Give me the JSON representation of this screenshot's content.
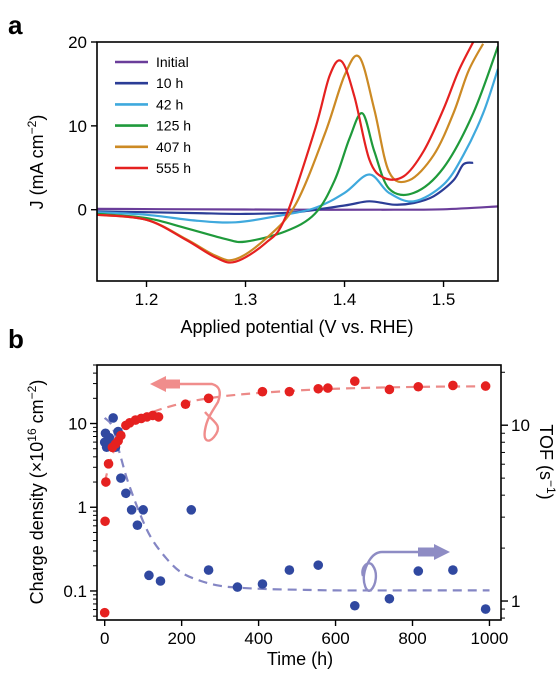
{
  "panels": [
    {
      "letter": "a"
    },
    {
      "letter": "b"
    }
  ],
  "chart_data": [
    {
      "type": "line",
      "panel": "a",
      "xlabel": "Applied potential (V vs. RHE)",
      "ylabel_main": "J (mA cm",
      "ylabel_sup": "−2",
      "ylabel_end": ")",
      "xlim": [
        1.15,
        1.555
      ],
      "ylim": [
        -8.5,
        20
      ],
      "xticks": [
        1.2,
        1.3,
        1.4,
        1.5
      ],
      "xtick_labels": [
        "1.2",
        "1.3",
        "1.4",
        "1.5"
      ],
      "yticks": [
        0,
        10,
        20
      ],
      "ytick_labels": [
        "0",
        "10",
        "20"
      ],
      "legend_position": "top-left",
      "series": [
        {
          "name": "Initial",
          "color": "#6a3d9a",
          "x": [
            1.15,
            1.25,
            1.35,
            1.45,
            1.5,
            1.555
          ],
          "y": [
            0.1,
            0.05,
            0.0,
            0.0,
            0.05,
            0.4
          ]
        },
        {
          "name": "10 h",
          "color": "#2b3d96",
          "x": [
            1.15,
            1.2,
            1.25,
            1.3,
            1.35,
            1.4,
            1.425,
            1.45,
            1.47,
            1.49,
            1.51,
            1.52,
            1.53
          ],
          "y": [
            -0.2,
            -0.3,
            -0.4,
            -0.5,
            -0.3,
            0.5,
            1.0,
            0.6,
            0.8,
            1.6,
            3.5,
            5.4,
            5.6
          ]
        },
        {
          "name": "42 h",
          "color": "#3fa9dd",
          "x": [
            1.15,
            1.2,
            1.25,
            1.29,
            1.33,
            1.37,
            1.4,
            1.425,
            1.445,
            1.47,
            1.5,
            1.52,
            1.54,
            1.555
          ],
          "y": [
            -0.3,
            -0.6,
            -1.3,
            -1.5,
            -0.8,
            0.2,
            2.0,
            4.2,
            2.0,
            1.0,
            3.0,
            6.5,
            11.5,
            16.8
          ]
        },
        {
          "name": "125 h",
          "color": "#1f9a3b",
          "x": [
            1.15,
            1.2,
            1.24,
            1.28,
            1.3,
            1.34,
            1.37,
            1.39,
            1.405,
            1.418,
            1.43,
            1.445,
            1.47,
            1.5,
            1.53,
            1.555
          ],
          "y": [
            -0.5,
            -1.0,
            -2.2,
            -3.5,
            -3.8,
            -2.6,
            -0.5,
            3.5,
            8.5,
            11.5,
            7.0,
            2.5,
            2.0,
            5.0,
            11.5,
            19.5
          ]
        },
        {
          "name": "407 h",
          "color": "#cc8a24",
          "x": [
            1.15,
            1.2,
            1.24,
            1.27,
            1.29,
            1.32,
            1.35,
            1.38,
            1.4,
            1.415,
            1.43,
            1.445,
            1.465,
            1.49,
            1.51,
            1.525,
            1.54
          ],
          "y": [
            -0.6,
            -1.2,
            -3.5,
            -5.5,
            -5.9,
            -3.5,
            0.5,
            9.0,
            16.0,
            18.2,
            12.0,
            4.5,
            3.5,
            6.5,
            11.5,
            16.5,
            19.8
          ]
        },
        {
          "name": "555 h",
          "color": "#e52120",
          "x": [
            1.15,
            1.2,
            1.24,
            1.27,
            1.29,
            1.32,
            1.34,
            1.37,
            1.385,
            1.397,
            1.41,
            1.425,
            1.44,
            1.46,
            1.48,
            1.5,
            1.515,
            1.53
          ],
          "y": [
            -0.6,
            -1.2,
            -3.6,
            -5.7,
            -6.2,
            -4.0,
            -1.0,
            9.5,
            16.0,
            17.7,
            13.5,
            6.0,
            3.8,
            4.0,
            7.0,
            12.0,
            16.5,
            20.0
          ]
        }
      ]
    },
    {
      "type": "scatter",
      "panel": "b",
      "xlabel": "Time (h)",
      "ylabel_left_main": "Charge density (×10",
      "ylabel_left_sup1": "16",
      "ylabel_left_mid": " cm",
      "ylabel_left_sup2": "−2",
      "ylabel_left_end": ")",
      "ylabel_right_main": "TOF (s",
      "ylabel_right_sup": "−1",
      "ylabel_right_end": ")",
      "xlim": [
        -20,
        1030
      ],
      "ylim_left": [
        0.045,
        50
      ],
      "ylim_right": [
        0.78,
        22
      ],
      "y_scale": "log",
      "xticks": [
        0,
        200,
        400,
        600,
        800,
        1000
      ],
      "xtick_labels": [
        "0",
        "200",
        "400",
        "600",
        "800",
        "1000"
      ],
      "yticks_left": [
        0.1,
        1,
        10
      ],
      "ytick_labels_left": [
        "0.1",
        "1",
        "10"
      ],
      "yticks_right": [
        1,
        10
      ],
      "ytick_labels_right": [
        "1",
        "10"
      ],
      "series": [
        {
          "name": "Charge density",
          "axis": "left",
          "color": "#e52120",
          "x": [
            0,
            1,
            3,
            10,
            20,
            28,
            35,
            42,
            55,
            65,
            80,
            95,
            110,
            125,
            140,
            210,
            270,
            410,
            480,
            555,
            580,
            650,
            740,
            815,
            905,
            990
          ],
          "y": [
            0.055,
            0.68,
            2.0,
            3.3,
            5.2,
            5.7,
            6.2,
            7.2,
            9.5,
            10.2,
            11.0,
            11.5,
            12.0,
            12.5,
            12.0,
            17.0,
            20.0,
            24.0,
            24.0,
            26.0,
            26.5,
            32.0,
            25.5,
            27.5,
            28.5,
            28.0
          ],
          "fit_x": [
            0,
            15,
            35,
            60,
            90,
            130,
            180,
            240,
            320,
            420,
            550,
            700,
            850,
            1000
          ],
          "fit_y": [
            2.0,
            3.6,
            6.2,
            9.0,
            11.5,
            14.0,
            16.5,
            19.0,
            21.5,
            23.5,
            25.5,
            26.8,
            27.5,
            27.8
          ]
        },
        {
          "name": "TOF",
          "axis": "right",
          "color": "#3048a0",
          "x": [
            0,
            2,
            5,
            8,
            12,
            22,
            28,
            35,
            42,
            55,
            70,
            85,
            100,
            115,
            145,
            225,
            270,
            345,
            410,
            480,
            555,
            650,
            740,
            815,
            905,
            990
          ],
          "y": [
            8.0,
            9.0,
            7.5,
            8.2,
            8.5,
            11.0,
            7.5,
            9.2,
            5.0,
            4.1,
            3.3,
            2.7,
            3.3,
            1.4,
            1.3,
            3.3,
            1.5,
            1.2,
            1.25,
            1.5,
            1.6,
            0.94,
            1.03,
            1.48,
            1.5,
            0.9
          ],
          "fit_x": [
            0,
            20,
            40,
            60,
            90,
            120,
            160,
            200,
            250,
            300,
            350,
            420,
            500,
            600,
            800,
            1000
          ],
          "fit_y": [
            11.0,
            9.8,
            6.8,
            4.8,
            3.2,
            2.3,
            1.75,
            1.45,
            1.3,
            1.22,
            1.19,
            1.17,
            1.16,
            1.15,
            1.15,
            1.15
          ]
        }
      ]
    }
  ]
}
